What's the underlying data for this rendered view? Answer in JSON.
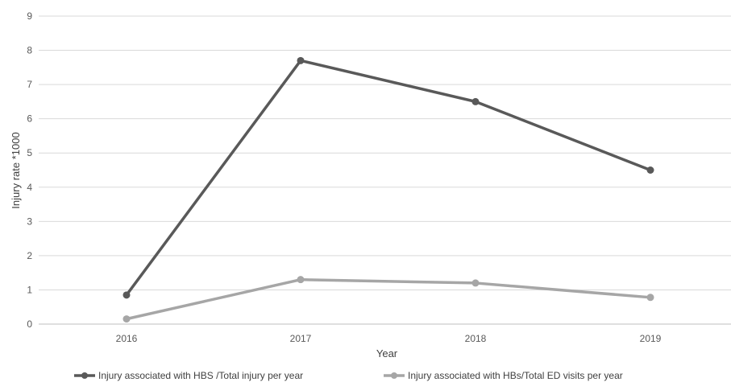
{
  "chart_data": {
    "type": "line",
    "title": "",
    "xlabel": "Year",
    "ylabel": "Injury rate *1000",
    "categories": [
      "2016",
      "2017",
      "2018",
      "2019"
    ],
    "ylim": [
      0,
      9
    ],
    "yticks": [
      0,
      1,
      2,
      3,
      4,
      5,
      6,
      7,
      8,
      9
    ],
    "grid": "horizontal",
    "legend_position": "bottom",
    "series": [
      {
        "name": "Injury associated with HBS /Total injury per year",
        "values": [
          0.85,
          7.7,
          6.5,
          4.5
        ],
        "color": "#595959"
      },
      {
        "name": "Injury associated with HBs/Total ED visits per year",
        "values": [
          0.15,
          1.3,
          1.2,
          0.78
        ],
        "color": "#a6a6a6"
      }
    ]
  }
}
